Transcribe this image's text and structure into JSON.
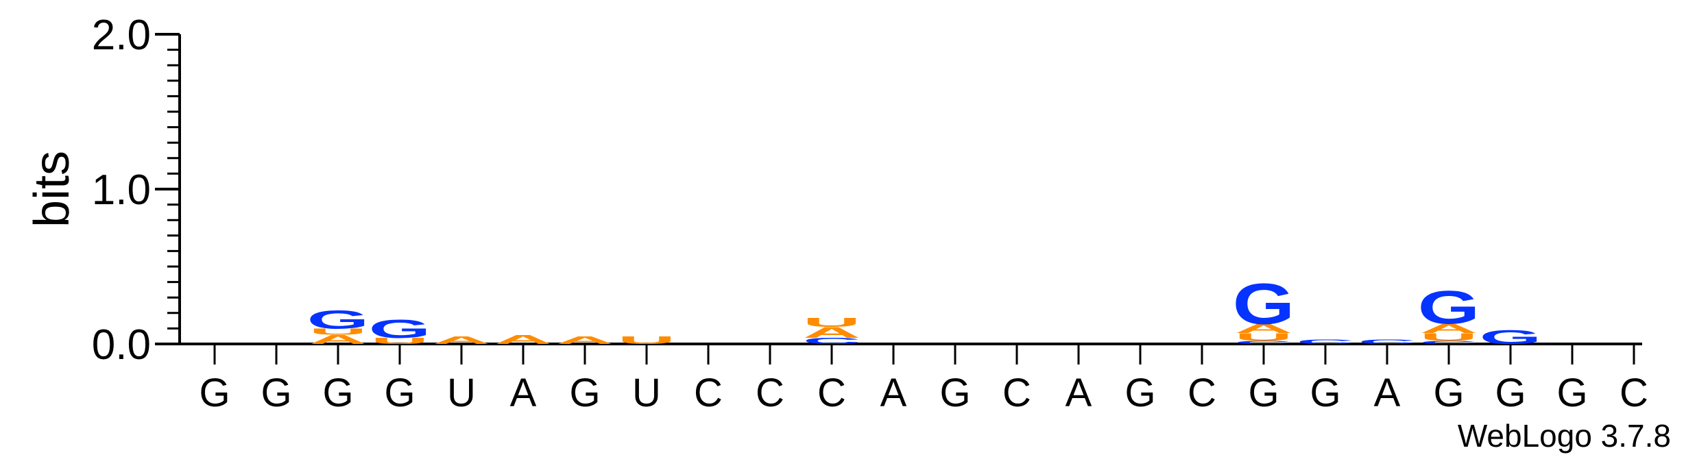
{
  "chart_data": {
    "type": "sequence-logo",
    "title": "",
    "xlabel": "",
    "ylabel": "bits",
    "ylim": [
      0,
      2.0
    ],
    "y_ticks": [
      "0.0",
      "1.0",
      "2.0"
    ],
    "colors": {
      "G": "#0533ff",
      "C": "#0533ff",
      "A": "#ff8c00",
      "U": "#ff8c00"
    },
    "positions": [
      {
        "label": "G",
        "stacks": []
      },
      {
        "label": "G",
        "stacks": []
      },
      {
        "label": "G",
        "stacks": [
          {
            "letter": "A",
            "value": 0.06
          },
          {
            "letter": "U",
            "value": 0.04
          },
          {
            "letter": "G",
            "value": 0.12
          }
        ]
      },
      {
        "label": "G",
        "stacks": [
          {
            "letter": "U",
            "value": 0.04
          },
          {
            "letter": "G",
            "value": 0.12
          }
        ]
      },
      {
        "label": "U",
        "stacks": [
          {
            "letter": "A",
            "value": 0.05
          }
        ]
      },
      {
        "label": "A",
        "stacks": [
          {
            "letter": "A",
            "value": 0.06
          }
        ]
      },
      {
        "label": "G",
        "stacks": [
          {
            "letter": "A",
            "value": 0.05
          }
        ]
      },
      {
        "label": "U",
        "stacks": [
          {
            "letter": "U",
            "value": 0.05
          }
        ]
      },
      {
        "label": "C",
        "stacks": []
      },
      {
        "label": "C",
        "stacks": []
      },
      {
        "label": "C",
        "stacks": [
          {
            "letter": "C",
            "value": 0.04
          },
          {
            "letter": "A",
            "value": 0.07
          },
          {
            "letter": "U",
            "value": 0.06
          }
        ]
      },
      {
        "label": "A",
        "stacks": []
      },
      {
        "label": "G",
        "stacks": []
      },
      {
        "label": "C",
        "stacks": []
      },
      {
        "label": "A",
        "stacks": []
      },
      {
        "label": "G",
        "stacks": []
      },
      {
        "label": "C",
        "stacks": []
      },
      {
        "label": "G",
        "stacks": [
          {
            "letter": "C",
            "value": 0.02
          },
          {
            "letter": "U",
            "value": 0.05
          },
          {
            "letter": "A",
            "value": 0.06
          },
          {
            "letter": "G",
            "value": 0.27
          }
        ]
      },
      {
        "label": "G",
        "stacks": [
          {
            "letter": "C",
            "value": 0.03
          }
        ]
      },
      {
        "label": "A",
        "stacks": [
          {
            "letter": "C",
            "value": 0.03
          }
        ]
      },
      {
        "label": "G",
        "stacks": [
          {
            "letter": "C",
            "value": 0.02
          },
          {
            "letter": "U",
            "value": 0.05
          },
          {
            "letter": "A",
            "value": 0.06
          },
          {
            "letter": "G",
            "value": 0.22
          }
        ]
      },
      {
        "label": "G",
        "stacks": [
          {
            "letter": "G",
            "value": 0.09
          }
        ]
      },
      {
        "label": "G",
        "stacks": []
      },
      {
        "label": "C",
        "stacks": []
      }
    ]
  },
  "credit": "WebLogo 3.7.8"
}
